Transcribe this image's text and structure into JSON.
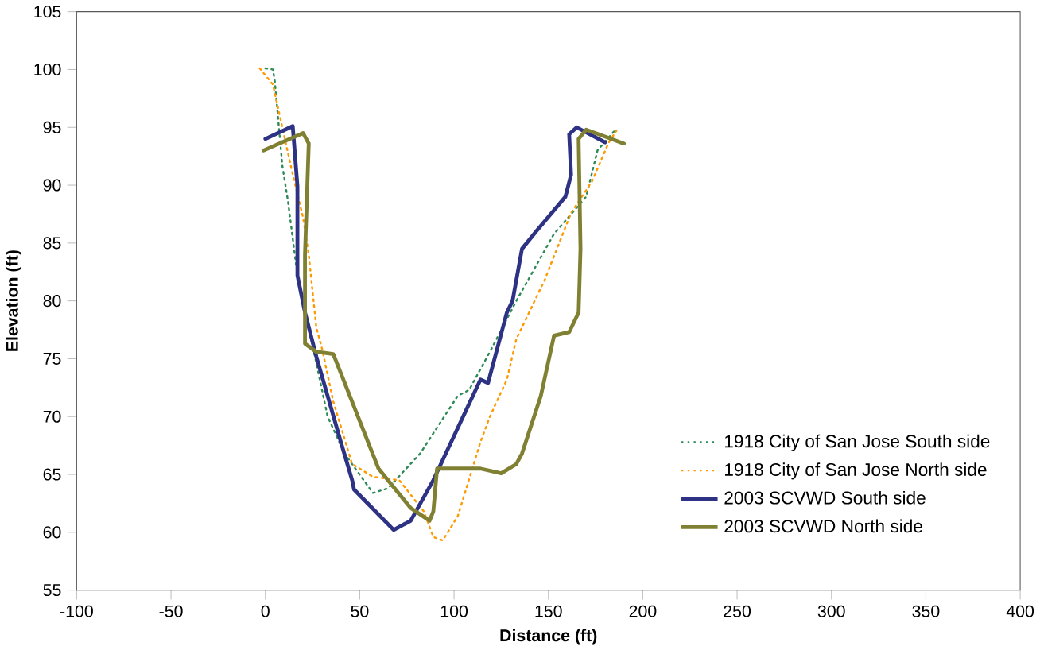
{
  "chart_data": {
    "type": "line",
    "xlabel": "Distance (ft)",
    "ylabel": "Elevation (ft)",
    "xlim": [
      -100,
      400
    ],
    "xticks": [
      -100,
      -50,
      0,
      50,
      100,
      150,
      200,
      250,
      300,
      350,
      400
    ],
    "ylim": [
      55,
      105
    ],
    "yticks": [
      55,
      60,
      65,
      70,
      75,
      80,
      85,
      90,
      95,
      100,
      105
    ],
    "grid": false,
    "legend": "bottom right",
    "marker": "none",
    "series": [
      {
        "name": "1918 City of San Jose South side",
        "color": "#2e8b57",
        "line_style": "dotted",
        "x": [
          0,
          4,
          5,
          9,
          12,
          17,
          26,
          33,
          42,
          57,
          65,
          82,
          102,
          108,
          119,
          133,
          153,
          170,
          176,
          185
        ],
        "values": [
          100.1,
          100,
          99,
          91.7,
          88.6,
          82.2,
          75.4,
          70,
          66.8,
          63.4,
          63.8,
          66.8,
          71.8,
          72.3,
          75.6,
          80,
          85.8,
          89,
          93,
          94.7
        ]
      },
      {
        "name": "1918 City of San Jose North side",
        "color": "#ff9900",
        "line_style": "dotted",
        "x": [
          -3,
          4,
          9,
          14,
          20,
          23,
          27,
          30,
          36,
          46,
          57,
          71,
          84,
          89,
          94,
          102,
          114,
          119,
          128,
          133,
          148,
          162,
          173,
          182,
          186
        ],
        "values": [
          100.1,
          98.7,
          95,
          91.3,
          87.2,
          84,
          77.7,
          75.9,
          71.3,
          65.9,
          64.8,
          64.5,
          61.8,
          59.6,
          59.3,
          61.4,
          67.8,
          70,
          73.2,
          76.7,
          81.8,
          87.6,
          90.3,
          93.7,
          94.7
        ]
      },
      {
        "name": "2003 SCVWD South side",
        "color": "#2e3284",
        "line_style": "solid",
        "x": [
          0,
          14.5,
          17,
          17,
          21,
          27,
          40,
          46,
          47,
          68,
          77,
          89,
          114,
          118,
          128,
          131,
          136,
          144,
          159,
          162,
          161,
          165,
          180
        ],
        "values": [
          94,
          95.1,
          89.9,
          82.2,
          79,
          75.2,
          67.8,
          64.5,
          63.7,
          60.2,
          61,
          64.5,
          73.2,
          72.9,
          79,
          80,
          84.5,
          86.1,
          89,
          90.9,
          94.4,
          95,
          93.7
        ]
      },
      {
        "name": "2003 SCVWD North side",
        "color": "#808033",
        "line_style": "solid",
        "x": [
          -1,
          20,
          23,
          21,
          21,
          27,
          36,
          60,
          77,
          87,
          89,
          91,
          114,
          125,
          133,
          136,
          146,
          153,
          161,
          166,
          167,
          166,
          170,
          190
        ],
        "values": [
          93,
          94.5,
          93.6,
          84,
          76.3,
          75.6,
          75.4,
          65.5,
          62.1,
          61,
          61.8,
          65.5,
          65.5,
          65.1,
          65.9,
          66.8,
          71.8,
          77,
          77.3,
          79,
          84.5,
          94,
          94.8,
          93.6
        ]
      }
    ]
  }
}
